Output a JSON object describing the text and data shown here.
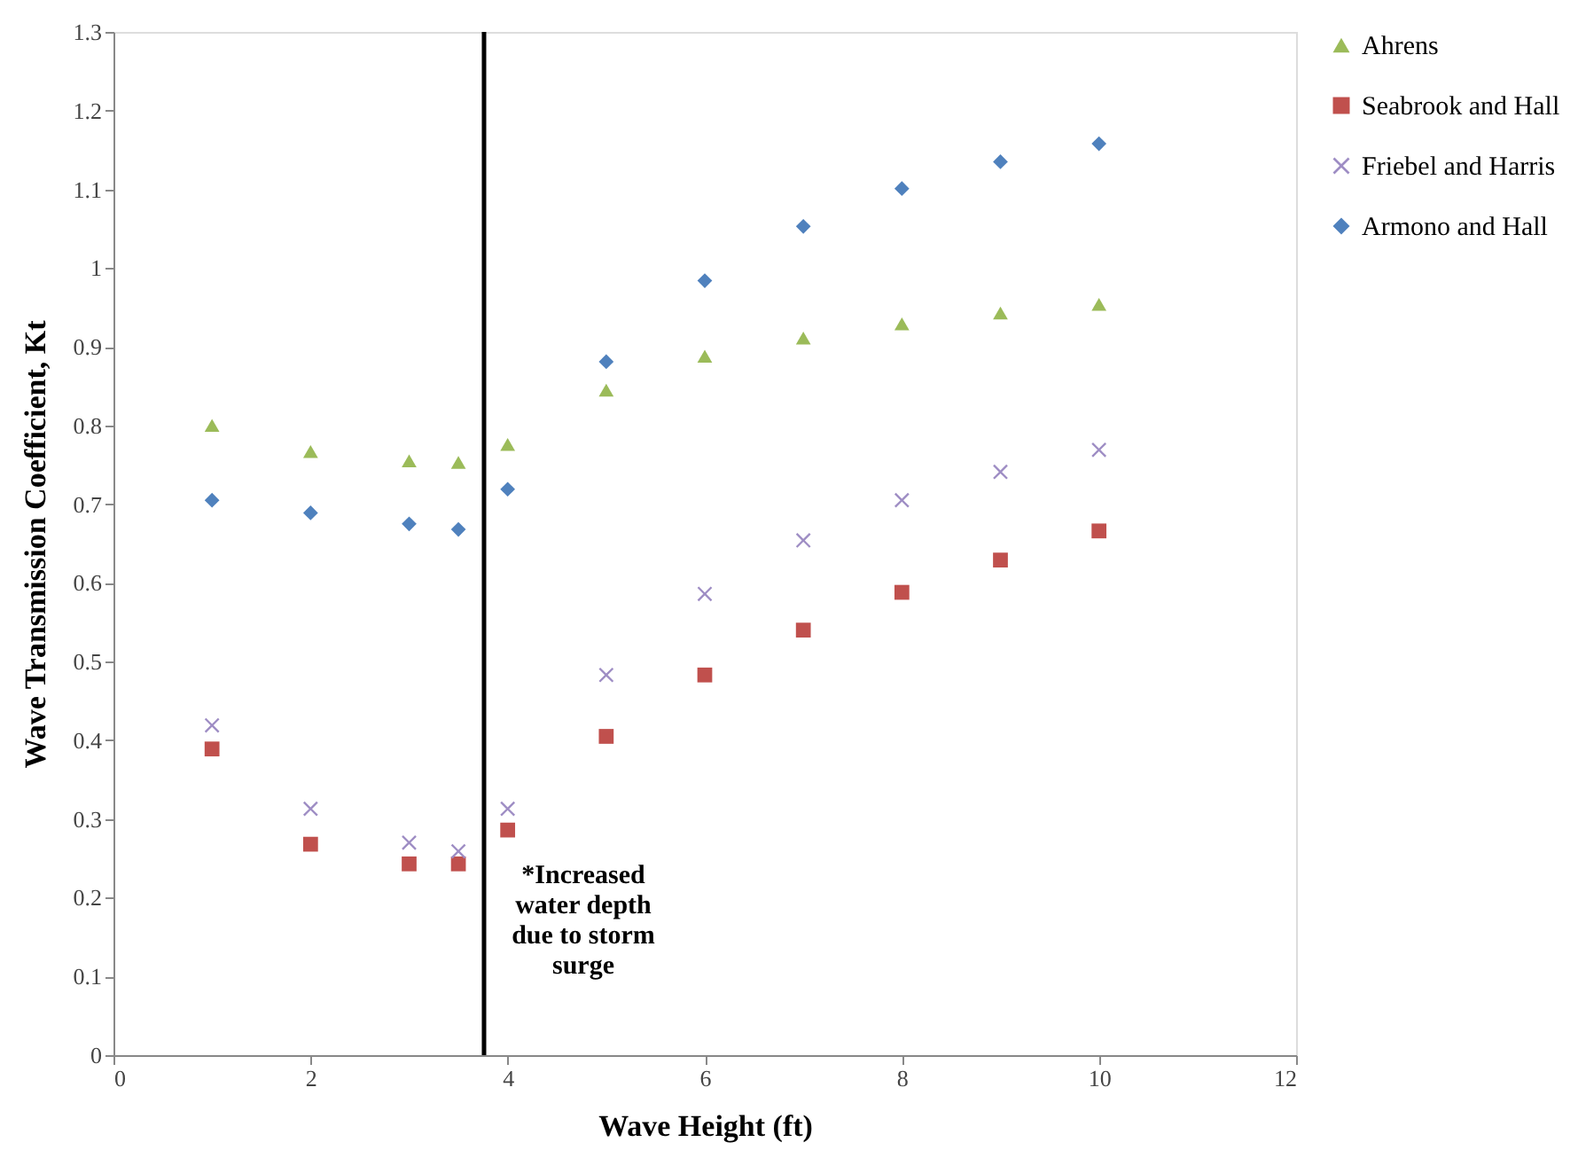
{
  "chart_data": {
    "type": "scatter",
    "xlabel": "Wave Height (ft)",
    "ylabel": "Wave Transmission Coefficient, Kt",
    "xlim": [
      0,
      12
    ],
    "xticks": [
      0,
      2,
      4,
      6,
      8,
      10,
      12
    ],
    "ylim": [
      0,
      1.3
    ],
    "yticks": [
      0,
      0.1,
      0.2,
      0.3,
      0.4,
      0.5,
      0.6,
      0.7,
      0.8,
      0.9,
      1,
      1.1,
      1.2,
      1.3
    ],
    "x": [
      1,
      2,
      3,
      3.5,
      4,
      5,
      6,
      7,
      8,
      9,
      10
    ],
    "grid": false,
    "legend": "right",
    "series": [
      {
        "name": "Ahrens",
        "color": "#9bbb59",
        "marker": "triangle",
        "values": [
          0.8,
          0.767,
          0.755,
          0.753,
          0.776,
          0.845,
          0.888,
          0.911,
          0.929,
          0.943,
          0.954
        ]
      },
      {
        "name": "Seabrook and Hall",
        "color": "#c0504d",
        "marker": "square",
        "values": [
          0.389,
          0.268,
          0.243,
          0.243,
          0.286,
          0.405,
          0.483,
          0.54,
          0.588,
          0.629,
          0.666
        ]
      },
      {
        "name": "Friebel and Harris",
        "color": "#9e8dc4",
        "marker": "cross",
        "values": [
          0.419,
          0.313,
          0.27,
          0.259,
          0.313,
          0.483,
          0.586,
          0.654,
          0.705,
          0.741,
          0.769
        ]
      },
      {
        "name": "Armono and Hall",
        "color": "#4f81bd",
        "marker": "diamond",
        "values": [
          0.705,
          0.689,
          0.675,
          0.668,
          0.719,
          0.881,
          0.984,
          1.053,
          1.101,
          1.135,
          1.158
        ]
      }
    ],
    "ref_lines": [
      {
        "axis": "x",
        "value": 3.76,
        "color": "#000000",
        "label": "*Increased\nwater depth\ndue to storm\nsurge"
      }
    ]
  }
}
